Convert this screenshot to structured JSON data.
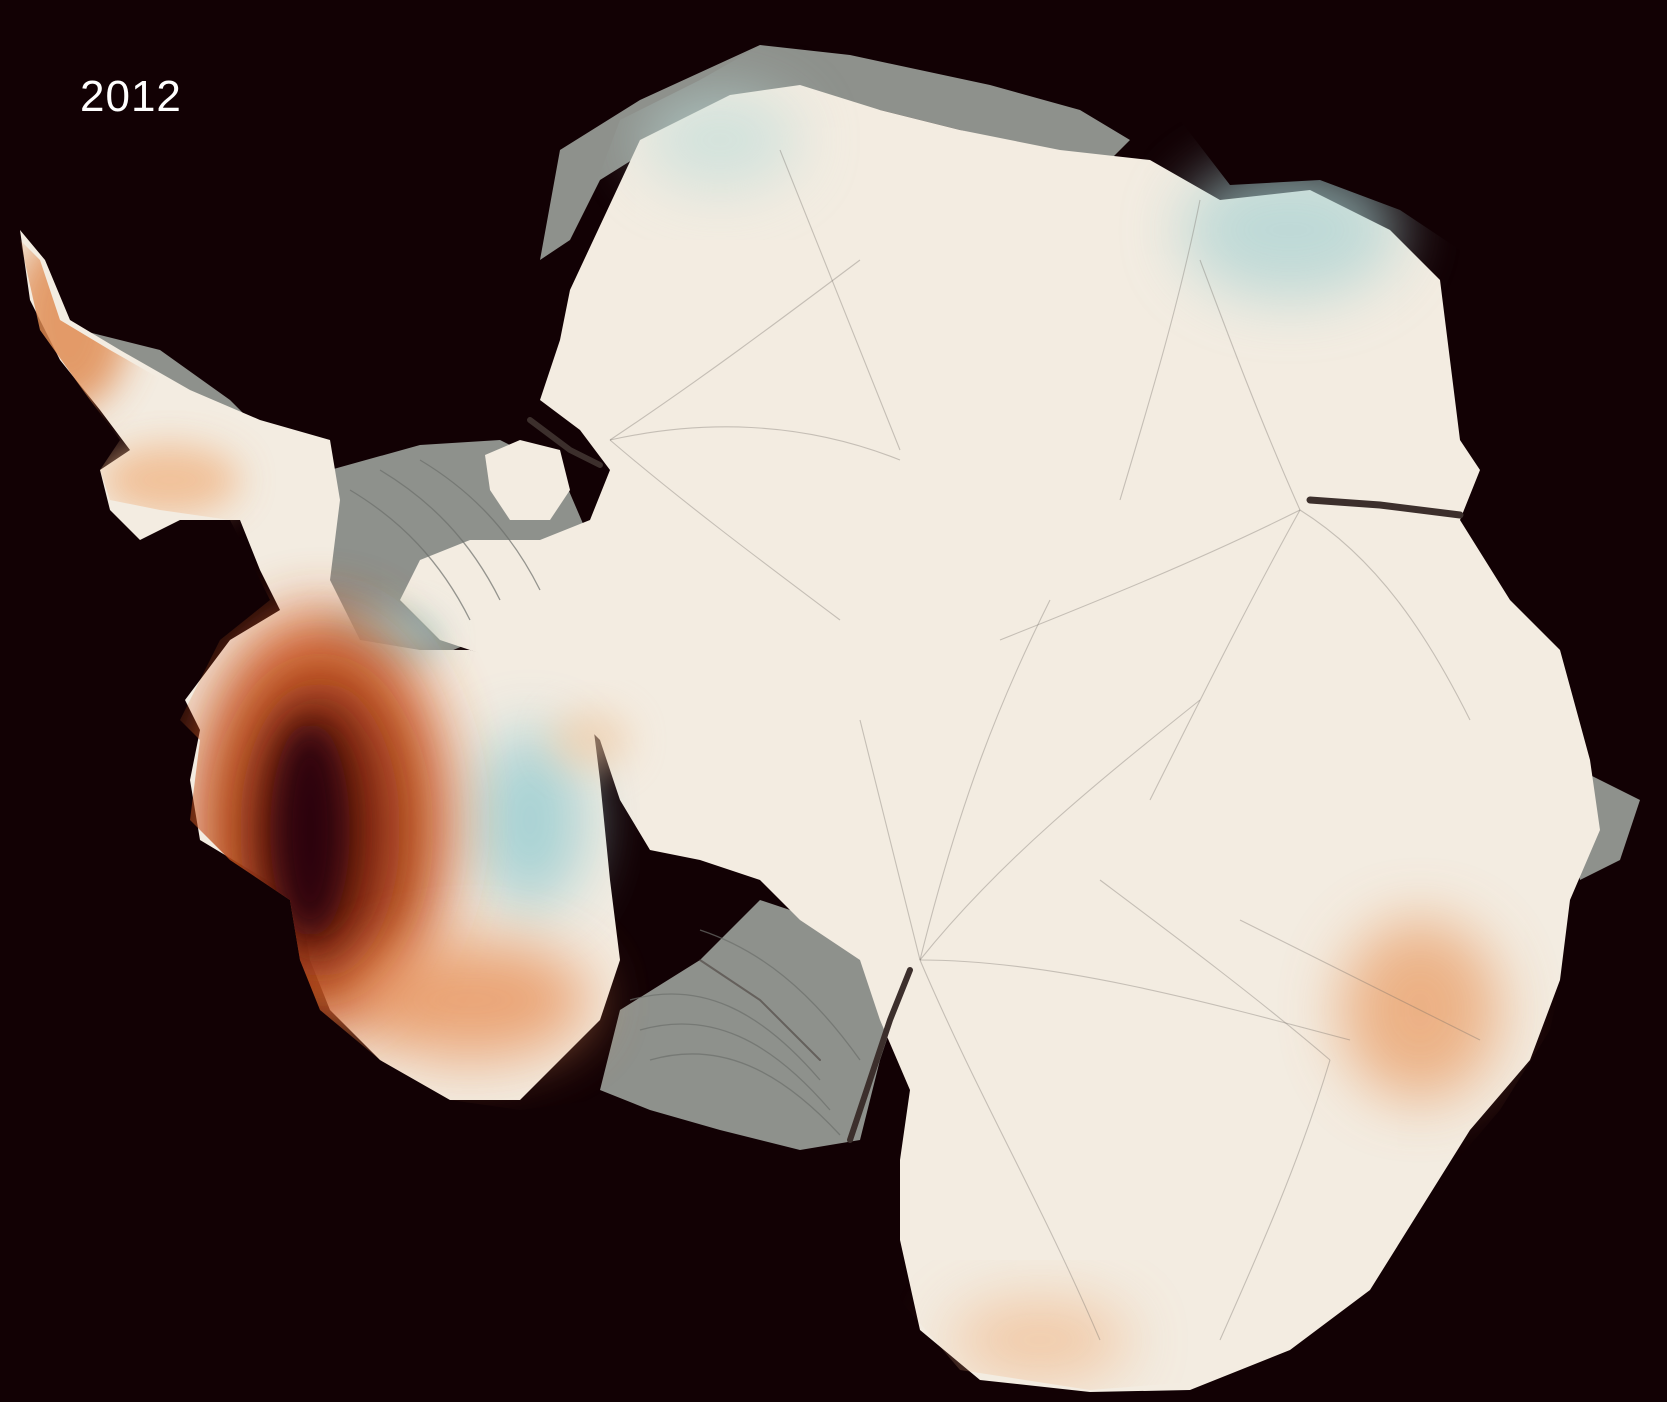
{
  "year_label": "2012",
  "map": {
    "subject": "antarctica-ice-flow-map",
    "colors": {
      "background": "#120104",
      "ice": "#f3ece1",
      "ice_shelf": "#8e918c",
      "gain": "#9fcfd3",
      "loss_light": "#f0b98c",
      "loss_mid": "#d2612a",
      "loss_strong": "#7a2210",
      "loss_max": "#260407"
    }
  }
}
